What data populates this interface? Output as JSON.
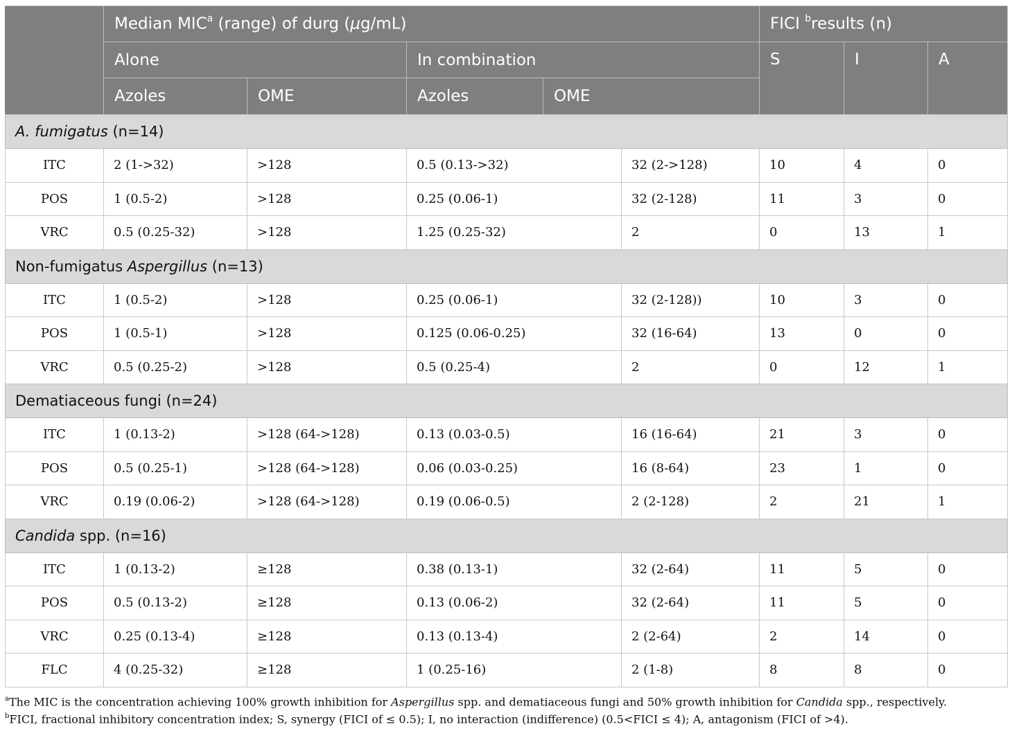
{
  "header": {
    "median_mic_pre": "Median MIC",
    "median_mic_sup": "a",
    "median_mic_post": " (range) of durg (",
    "mu": "μ",
    "median_mic_unit": "g/mL)",
    "fici_pre": "FICI ",
    "fici_sup": "b",
    "fici_post": "results (n)",
    "alone": "Alone",
    "in_combination": "In combination",
    "azoles_alone": "Azoles",
    "ome_alone": "OME",
    "azoles_combo": "Azoles",
    "ome_combo": "OME",
    "s": "S",
    "i": "I",
    "a": "A"
  },
  "groups": [
    {
      "title_italic": "A. fumigatus",
      "title_rest": " (n=14)",
      "rows": [
        [
          "ITC",
          "2 (1->32)",
          ">128",
          "0.5 (0.13->32)",
          "32 (2->128)",
          "10",
          "4",
          "0"
        ],
        [
          "POS",
          "1 (0.5-2)",
          ">128",
          "0.25 (0.06-1)",
          "32 (2-128)",
          "11",
          "3",
          "0"
        ],
        [
          "VRC",
          "0.5 (0.25-32)",
          ">128",
          "1.25 (0.25-32)",
          "2",
          "0",
          "13",
          "1"
        ]
      ]
    },
    {
      "title_pre": "Non-fumigatus ",
      "title_italic": "Aspergillus",
      "title_rest": " (n=13)",
      "rows": [
        [
          "ITC",
          "1 (0.5-2)",
          ">128",
          "0.25 (0.06-1)",
          "32 (2-128))",
          "10",
          "3",
          "0"
        ],
        [
          "POS",
          "1 (0.5-1)",
          ">128",
          "0.125 (0.06-0.25)",
          "32 (16-64)",
          "13",
          "0",
          "0"
        ],
        [
          "VRC",
          "0.5 (0.25-2)",
          ">128",
          "0.5 (0.25-4)",
          "2",
          "0",
          "12",
          "1"
        ]
      ]
    },
    {
      "title_pre": "Dematiaceous fungi (n=24)",
      "rows": [
        [
          "ITC",
          "1 (0.13-2)",
          ">128 (64->128)",
          "0.13 (0.03-0.5)",
          "16 (16-64)",
          "21",
          "3",
          "0"
        ],
        [
          "POS",
          "0.5 (0.25-1)",
          ">128 (64->128)",
          "0.06 (0.03-0.25)",
          "16 (8-64)",
          "23",
          "1",
          "0"
        ],
        [
          "VRC",
          "0.19 (0.06-2)",
          ">128 (64->128)",
          "0.19 (0.06-0.5)",
          "2 (2-128)",
          "2",
          "21",
          "1"
        ]
      ]
    },
    {
      "title_italic": "Candida",
      "title_rest": " spp. (n=16)",
      "rows": [
        [
          "ITC",
          "1 (0.13-2)",
          "≥128",
          "0.38 (0.13-1)",
          "32 (2-64)",
          "11",
          "5",
          "0"
        ],
        [
          "POS",
          "0.5 (0.13-2)",
          "≥128",
          "0.13 (0.06-2)",
          "32 (2-64)",
          "11",
          "5",
          "0"
        ],
        [
          "VRC",
          "0.25 (0.13-4)",
          "≥128",
          "0.13 (0.13-4)",
          "2 (2-64)",
          "2",
          "14",
          "0"
        ],
        [
          "FLC",
          "4 (0.25-32)",
          "≥128",
          "1 (0.25-16)",
          "2 (1-8)",
          "8",
          "8",
          "0"
        ]
      ]
    }
  ],
  "footnotes": {
    "a_mark": "a",
    "a_1": "The MIC is the concentration achieving 100% growth inhibition for ",
    "a_2": "Aspergillus",
    "a_3": " spp. and dematiaceous fungi and 50% growth inhibition for ",
    "a_4": "Candida",
    "a_5": " spp., respectively.",
    "b_mark": "b",
    "b_text": "FICI, fractional inhibitory concentration index; S, synergy (FICI of ≤ 0.5); I, no interaction (indifference) (0.5<FICI ≤ 4); A, antagonism (FICI of >4)."
  }
}
